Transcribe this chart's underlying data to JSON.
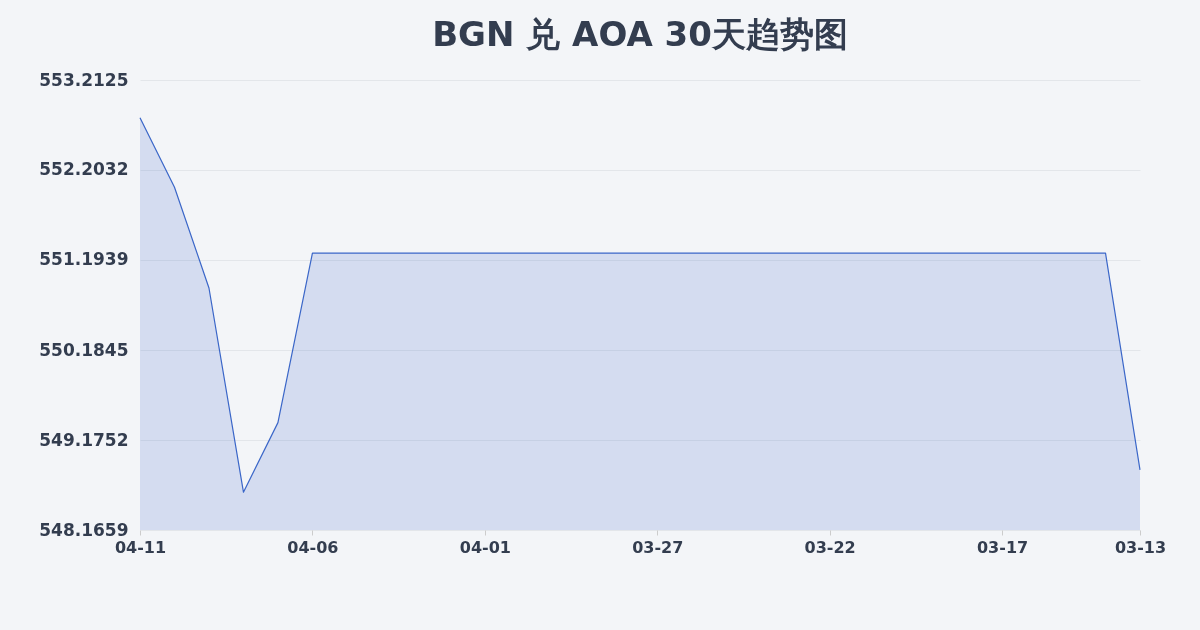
{
  "chart_data": {
    "type": "area",
    "title": "BGN 兑 AOA 30天趋势图",
    "categories": [
      "04-11",
      null,
      null,
      null,
      null,
      "04-06",
      null,
      null,
      null,
      null,
      "04-01",
      null,
      null,
      null,
      null,
      "03-27",
      null,
      null,
      null,
      null,
      "03-22",
      null,
      null,
      null,
      null,
      "03-17",
      null,
      null,
      null,
      "03-13"
    ],
    "series": [
      {
        "color": "#3a66c8",
        "values": [
          552.79,
          552.01,
          550.88,
          548.59,
          549.37,
          551.27,
          551.27,
          551.27,
          551.27,
          551.27,
          551.27,
          551.27,
          551.27,
          551.27,
          551.27,
          551.27,
          551.27,
          551.27,
          551.27,
          551.27,
          551.27,
          551.27,
          551.27,
          551.27,
          551.27,
          551.27,
          551.27,
          551.27,
          551.27,
          548.84
        ]
      }
    ],
    "ylim": [
      548.1659,
      553.2125
    ],
    "yticks": [
      548.1659,
      549.1752,
      550.1845,
      551.1939,
      552.2032,
      553.2125
    ],
    "grid": "y"
  }
}
